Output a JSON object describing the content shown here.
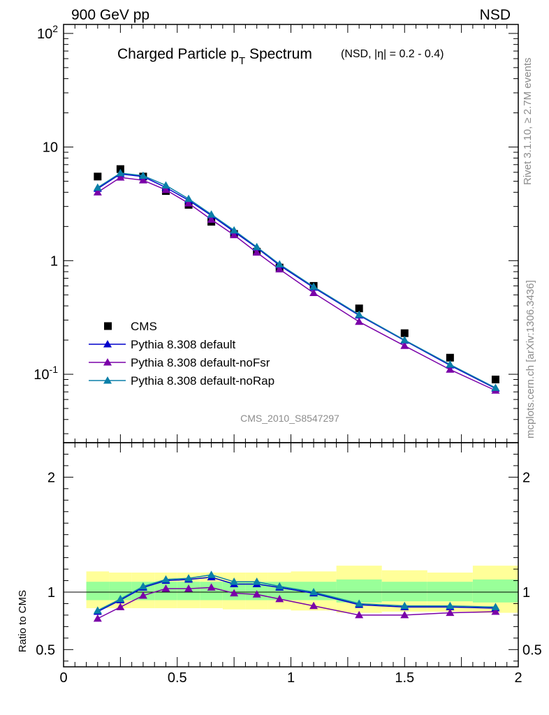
{
  "header": {
    "left_label": "900 GeV pp",
    "right_label": "NSD",
    "title_main": "Charged Particle p",
    "title_sub": "T",
    "title_tail": " Spectrum",
    "title_note": "(NSD, |η| = 0.2 - 0.4)"
  },
  "side_labels": {
    "rivet": "Rivet 3.1.10, ≥ 2.7M events",
    "mcplots": "mcplots.cern.ch [arXiv:1306.3436]"
  },
  "analysis_label": "CMS_2010_S8547297",
  "colors": {
    "cms": "#000000",
    "default": "#0000cc",
    "noFsr": "#7a00a8",
    "noRap": "#0a7fa8",
    "band_inner": "#99ff99",
    "band_outer": "#ffff99",
    "ratio_label_color": "#8c8c8c"
  },
  "chart_data": [
    {
      "type": "scatter",
      "panel": "main",
      "yscale": "log",
      "xlim": [
        0,
        2
      ],
      "ylim": [
        0.025,
        120
      ],
      "y_tick_labels": [
        "10^-1",
        "1",
        "10",
        "10^2"
      ],
      "legend_position": "bottom-left",
      "legend": [
        {
          "name": "CMS",
          "marker": "square"
        },
        {
          "name": "Pythia 8.308 default",
          "marker": "triangle"
        },
        {
          "name": "Pythia 8.308 default-noFsr",
          "marker": "triangle"
        },
        {
          "name": "Pythia 8.308 default-noRap",
          "marker": "triangle"
        }
      ],
      "x": [
        0.15,
        0.25,
        0.35,
        0.45,
        0.55,
        0.65,
        0.75,
        0.85,
        0.95,
        1.1,
        1.3,
        1.5,
        1.7,
        1.9
      ],
      "series": [
        {
          "name": "CMS",
          "key": "cms",
          "values": [
            5.5,
            6.4,
            5.5,
            4.1,
            3.1,
            2.2,
            1.72,
            1.2,
            0.87,
            0.6,
            0.38,
            0.23,
            0.14,
            0.09
          ]
        },
        {
          "name": "Pythia 8.308 default",
          "key": "default",
          "values": [
            4.3,
            5.8,
            5.5,
            4.4,
            3.4,
            2.5,
            1.8,
            1.3,
            0.91,
            0.58,
            0.33,
            0.198,
            0.12,
            0.075
          ]
        },
        {
          "name": "Pythia 8.308 default-noFsr",
          "key": "noFsr",
          "values": [
            4.0,
            5.4,
            5.1,
            4.2,
            3.2,
            2.3,
            1.68,
            1.18,
            0.84,
            0.52,
            0.29,
            0.178,
            0.11,
            0.072
          ]
        },
        {
          "name": "Pythia 8.308 default-noRap",
          "key": "noRap",
          "values": [
            4.4,
            5.9,
            5.6,
            4.6,
            3.5,
            2.55,
            1.85,
            1.32,
            0.93,
            0.59,
            0.335,
            0.2,
            0.122,
            0.076
          ]
        }
      ]
    },
    {
      "type": "line",
      "panel": "ratio",
      "ylabel": "Ratio to CMS",
      "xlim": [
        0,
        2
      ],
      "ylim": [
        0.35,
        2.3
      ],
      "x_tick_labels": [
        "0",
        "0.5",
        "1",
        "1.5",
        "2"
      ],
      "y_tick_labels": [
        "0.5",
        "1",
        "2"
      ],
      "x": [
        0.15,
        0.25,
        0.35,
        0.45,
        0.55,
        0.65,
        0.75,
        0.85,
        0.95,
        1.1,
        1.3,
        1.5,
        1.7,
        1.9
      ],
      "bins": [
        [
          0.1,
          0.2
        ],
        [
          0.2,
          0.3
        ],
        [
          0.3,
          0.4
        ],
        [
          0.4,
          0.5
        ],
        [
          0.5,
          0.6
        ],
        [
          0.6,
          0.7
        ],
        [
          0.7,
          0.8
        ],
        [
          0.8,
          0.9
        ],
        [
          0.9,
          1.0
        ],
        [
          1.0,
          1.2
        ],
        [
          1.2,
          1.4
        ],
        [
          1.4,
          1.6
        ],
        [
          1.6,
          1.8
        ],
        [
          1.8,
          2.0
        ]
      ],
      "band_inner": [
        [
          0.93,
          1.09
        ],
        [
          0.93,
          1.09
        ],
        [
          0.93,
          1.09
        ],
        [
          0.93,
          1.09
        ],
        [
          0.93,
          1.09
        ],
        [
          0.93,
          1.09
        ],
        [
          0.93,
          1.09
        ],
        [
          0.93,
          1.09
        ],
        [
          0.93,
          1.09
        ],
        [
          0.93,
          1.09
        ],
        [
          0.91,
          1.11
        ],
        [
          0.92,
          1.09
        ],
        [
          0.92,
          1.09
        ],
        [
          0.91,
          1.11
        ]
      ],
      "band_outer": [
        [
          0.86,
          1.18
        ],
        [
          0.86,
          1.17
        ],
        [
          0.86,
          1.17
        ],
        [
          0.86,
          1.17
        ],
        [
          0.86,
          1.17
        ],
        [
          0.86,
          1.17
        ],
        [
          0.85,
          1.17
        ],
        [
          0.85,
          1.17
        ],
        [
          0.85,
          1.17
        ],
        [
          0.84,
          1.18
        ],
        [
          0.82,
          1.23
        ],
        [
          0.83,
          1.19
        ],
        [
          0.83,
          1.17
        ],
        [
          0.82,
          1.23
        ]
      ],
      "reference_line": 1,
      "series": [
        {
          "name": "Pythia 8.308 default",
          "key": "default",
          "values": [
            0.83,
            0.93,
            1.04,
            1.1,
            1.11,
            1.13,
            1.07,
            1.07,
            1.04,
            0.99,
            0.89,
            0.87,
            0.87,
            0.86
          ]
        },
        {
          "name": "Pythia 8.308 default-noFsr",
          "key": "noFsr",
          "values": [
            0.77,
            0.87,
            0.97,
            1.03,
            1.03,
            1.04,
            0.99,
            0.98,
            0.94,
            0.88,
            0.8,
            0.8,
            0.82,
            0.83
          ]
        },
        {
          "name": "Pythia 8.308 default-noRap",
          "key": "noRap",
          "values": [
            0.84,
            0.94,
            1.05,
            1.11,
            1.12,
            1.15,
            1.09,
            1.09,
            1.05,
            1.0,
            0.9,
            0.88,
            0.88,
            0.87
          ]
        }
      ]
    }
  ]
}
